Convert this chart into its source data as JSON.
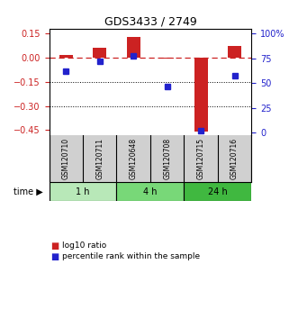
{
  "title": "GDS3433 / 2749",
  "samples": [
    "GSM120710",
    "GSM120711",
    "GSM120648",
    "GSM120708",
    "GSM120715",
    "GSM120716"
  ],
  "log10_ratio": [
    0.015,
    0.06,
    0.13,
    -0.005,
    -0.46,
    0.07
  ],
  "percentile_rank": [
    62,
    72,
    78,
    47,
    2,
    58
  ],
  "groups": [
    {
      "label": "1 h",
      "start": 0,
      "end": 2,
      "color": "#b8e8b8"
    },
    {
      "label": "4 h",
      "start": 2,
      "end": 4,
      "color": "#78d878"
    },
    {
      "label": "24 h",
      "start": 4,
      "end": 6,
      "color": "#40b840"
    }
  ],
  "ylim_left": [
    -0.48,
    0.18
  ],
  "ylim_right": [
    -2.1,
    105
  ],
  "yticks_left": [
    0.15,
    0.0,
    -0.15,
    -0.3,
    -0.45
  ],
  "yticks_right": [
    100,
    75,
    50,
    25,
    0
  ],
  "hline_y": 0.0,
  "dotted_lines": [
    -0.15,
    -0.3
  ],
  "bar_color": "#cc2222",
  "scatter_color": "#2222cc",
  "sample_bg_color": "#d0d0d0",
  "left_tick_color": "#cc2222",
  "right_tick_color": "#2222cc",
  "bar_width": 0.4
}
